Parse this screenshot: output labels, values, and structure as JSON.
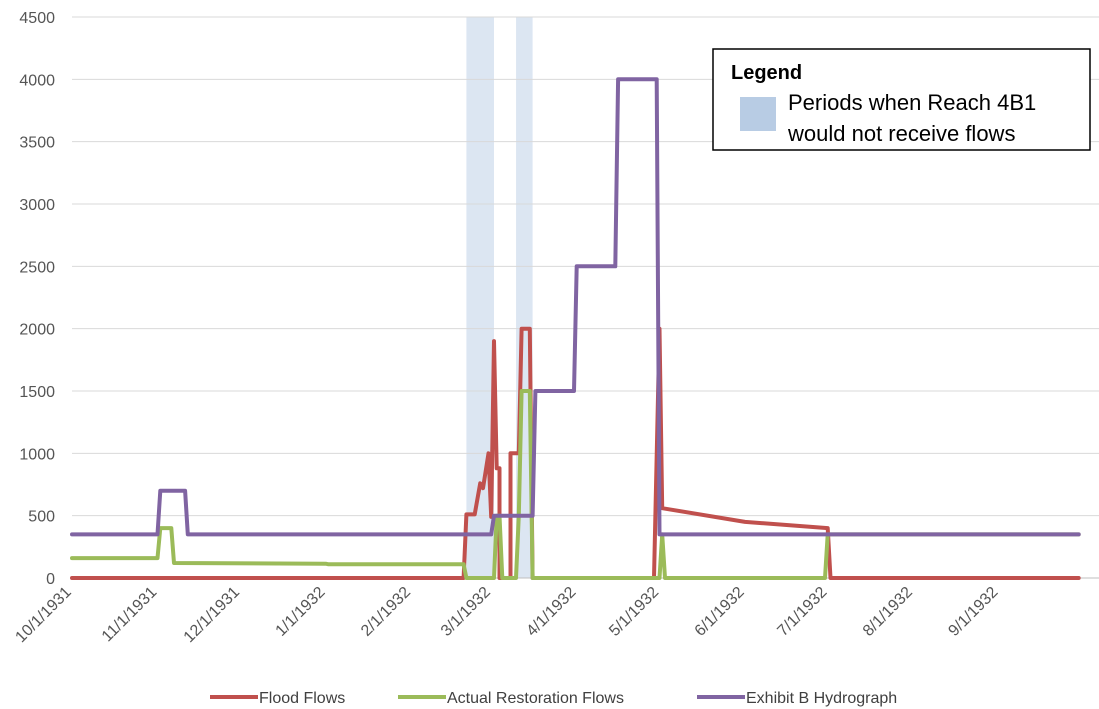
{
  "chart_data": {
    "type": "line",
    "x_axis": {
      "type": "date",
      "min": "1931-10-01",
      "max": "1932-09-30",
      "tick_labels": [
        "10/1/1931",
        "11/1/1931",
        "12/1/1931",
        "1/1/1932",
        "2/1/1932",
        "3/1/1932",
        "4/1/1932",
        "5/1/1932",
        "6/1/1932",
        "7/1/1932",
        "8/1/1932",
        "9/1/1932"
      ],
      "tick_dates": [
        "1931-10-01",
        "1931-11-01",
        "1931-12-01",
        "1932-01-01",
        "1932-02-01",
        "1932-03-01",
        "1932-04-01",
        "1932-05-01",
        "1932-06-01",
        "1932-07-01",
        "1932-08-01",
        "1932-09-01"
      ]
    },
    "y_axis": {
      "min": 0,
      "max": 4500,
      "tick_labels": [
        "0",
        "500",
        "1000",
        "1500",
        "2000",
        "2500",
        "3000",
        "3500",
        "4000",
        "4500"
      ],
      "tick_values": [
        0,
        500,
        1000,
        1500,
        2000,
        2500,
        3000,
        3500,
        4000,
        4500
      ]
    },
    "grid": "horizontal",
    "shaded_periods": [
      {
        "start": "1932-02-21",
        "end": "1932-03-02"
      },
      {
        "start": "1932-03-10",
        "end": "1932-03-16"
      }
    ],
    "series": [
      {
        "name": "Flood Flows",
        "color": "#c0504d",
        "points": [
          [
            "1931-10-01",
            0
          ],
          [
            "1932-02-20",
            0
          ],
          [
            "1932-02-21",
            510
          ],
          [
            "1932-02-24",
            510
          ],
          [
            "1932-02-26",
            760
          ],
          [
            "1932-02-27",
            720
          ],
          [
            "1932-02-29",
            1000
          ],
          [
            "1932-03-01",
            490
          ],
          [
            "1932-03-02",
            1900
          ],
          [
            "1932-03-03",
            880
          ],
          [
            "1932-03-04",
            880
          ],
          [
            "1932-03-04",
            0
          ],
          [
            "1932-03-08",
            0
          ],
          [
            "1932-03-08",
            1000
          ],
          [
            "1932-03-11",
            1000
          ],
          [
            "1932-03-12",
            2000
          ],
          [
            "1932-03-15",
            2000
          ],
          [
            "1932-03-16",
            0
          ],
          [
            "1932-04-29",
            0
          ],
          [
            "1932-05-01",
            2000
          ],
          [
            "1932-05-02",
            560
          ],
          [
            "1932-06-01",
            450
          ],
          [
            "1932-07-01",
            400
          ],
          [
            "1932-07-02",
            0
          ],
          [
            "1932-09-30",
            0
          ]
        ]
      },
      {
        "name": "Actual Restoration Flows",
        "color": "#9bbb59",
        "points": [
          [
            "1931-10-01",
            160
          ],
          [
            "1931-11-01",
            160
          ],
          [
            "1931-11-02",
            400
          ],
          [
            "1931-11-06",
            400
          ],
          [
            "1931-11-07",
            120
          ],
          [
            "1932-01-01",
            115
          ],
          [
            "1932-01-02",
            110
          ],
          [
            "1932-02-20",
            110
          ],
          [
            "1932-02-21",
            0
          ],
          [
            "1932-03-02",
            0
          ],
          [
            "1932-03-03",
            500
          ],
          [
            "1932-03-04",
            500
          ],
          [
            "1932-03-05",
            0
          ],
          [
            "1932-03-10",
            0
          ],
          [
            "1932-03-11",
            500
          ],
          [
            "1932-03-12",
            1500
          ],
          [
            "1932-03-15",
            1500
          ],
          [
            "1932-03-16",
            0
          ],
          [
            "1932-05-01",
            0
          ],
          [
            "1932-05-02",
            350
          ],
          [
            "1932-05-03",
            0
          ],
          [
            "1932-06-30",
            0
          ],
          [
            "1932-07-01",
            350
          ],
          [
            "1932-09-30",
            350
          ]
        ]
      },
      {
        "name": "Exhibit B Hydrograph",
        "color": "#8064a2",
        "points": [
          [
            "1931-10-01",
            350
          ],
          [
            "1931-11-01",
            350
          ],
          [
            "1931-11-02",
            700
          ],
          [
            "1931-11-11",
            700
          ],
          [
            "1931-11-12",
            350
          ],
          [
            "1932-03-01",
            350
          ],
          [
            "1932-03-02",
            500
          ],
          [
            "1932-03-16",
            500
          ],
          [
            "1932-03-17",
            1500
          ],
          [
            "1932-03-31",
            1500
          ],
          [
            "1932-04-01",
            2500
          ],
          [
            "1932-04-15",
            2500
          ],
          [
            "1932-04-16",
            4000
          ],
          [
            "1932-04-30",
            4000
          ],
          [
            "1932-05-01",
            350
          ],
          [
            "1932-09-30",
            350
          ]
        ]
      }
    ],
    "legend": {
      "position": "bottom",
      "entries": [
        "Flood Flows",
        "Actual Restoration Flows",
        "Exhibit B Hydrograph"
      ]
    },
    "annotation_legend": {
      "position": "top-right",
      "title": "Legend",
      "entry_line1": "Periods when Reach 4B1",
      "entry_line2": "would not receive flows",
      "swatch_color": "#b8cce4"
    }
  }
}
